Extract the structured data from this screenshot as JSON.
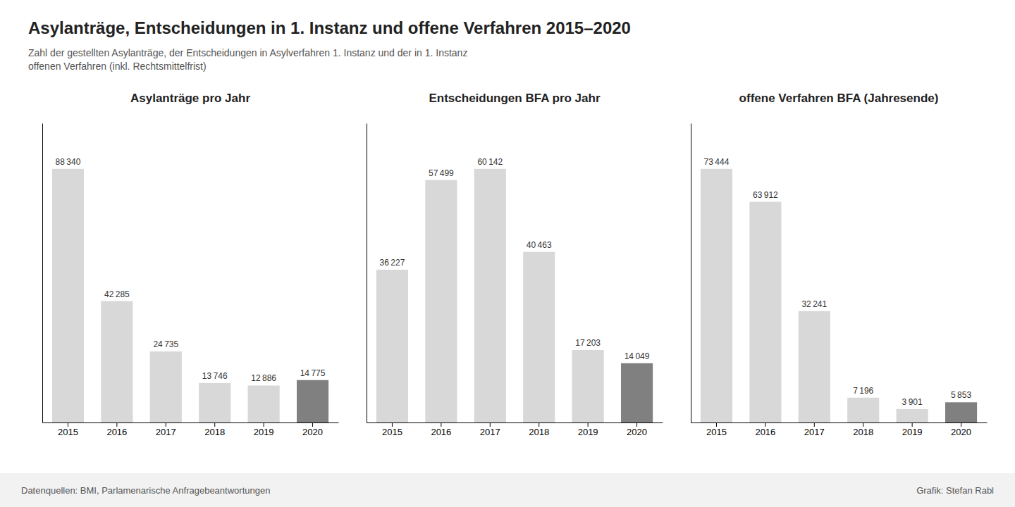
{
  "title": "Asylanträge, Entscheidungen in 1. Instanz und offene Verfahren 2015–2020",
  "subtitle": [
    "Zahl der gestellten Asylanträge, der Entscheidungen in Asylverfahren 1. Instanz und der in 1. Instanz",
    "offenen Verfahren (inkl. Rechtsmittelfrist)"
  ],
  "source": "Datenquellen: BMI, Parlamenarische Anfragebeantwortungen",
  "credit": "Grafik: Stefan Rabl",
  "chart_data": [
    {
      "type": "bar",
      "title": "Asylanträge pro Jahr",
      "categories": [
        "2015",
        "2016",
        "2017",
        "2018",
        "2019",
        "2020"
      ],
      "values": [
        88340,
        42285,
        24735,
        13746,
        12886,
        14775
      ],
      "value_labels": [
        "88 340",
        "42 285",
        "24 735",
        "13 746",
        "12 886",
        "14 775"
      ],
      "colors": [
        "#d8d8d8",
        "#d8d8d8",
        "#d8d8d8",
        "#d8d8d8",
        "#d8d8d8",
        "#808080"
      ],
      "ylim": [
        0,
        104241.2
      ],
      "data_labels": true,
      "tick_labels": "x",
      "grid": false
    },
    {
      "type": "bar",
      "title": "Entscheidungen BFA pro Jahr",
      "categories": [
        "2015",
        "2016",
        "2017",
        "2018",
        "2019",
        "2020"
      ],
      "values": [
        36227,
        57499,
        60142,
        40463,
        17203,
        14049
      ],
      "value_labels": [
        "36 227",
        "57 499",
        "60 142",
        "40 463",
        "17 203",
        "14 049"
      ],
      "colors": [
        "#d8d8d8",
        "#d8d8d8",
        "#d8d8d8",
        "#d8d8d8",
        "#d8d8d8",
        "#808080"
      ],
      "ylim": [
        0,
        70967.56
      ],
      "data_labels": true,
      "tick_labels": "x",
      "grid": false
    },
    {
      "type": "bar",
      "title": "offene Verfahren BFA (Jahresende)",
      "categories": [
        "2015",
        "2016",
        "2017",
        "2018",
        "2019",
        "2020"
      ],
      "values": [
        73444,
        63912,
        32241,
        7196,
        3901,
        5853
      ],
      "value_labels": [
        "73 444",
        "63 912",
        "32 241",
        "7 196",
        "3 901",
        "5 853"
      ],
      "colors": [
        "#d8d8d8",
        "#d8d8d8",
        "#d8d8d8",
        "#d8d8d8",
        "#d8d8d8",
        "#808080"
      ],
      "ylim": [
        0,
        86663.92
      ],
      "data_labels": true,
      "tick_labels": "x",
      "grid": false
    }
  ]
}
